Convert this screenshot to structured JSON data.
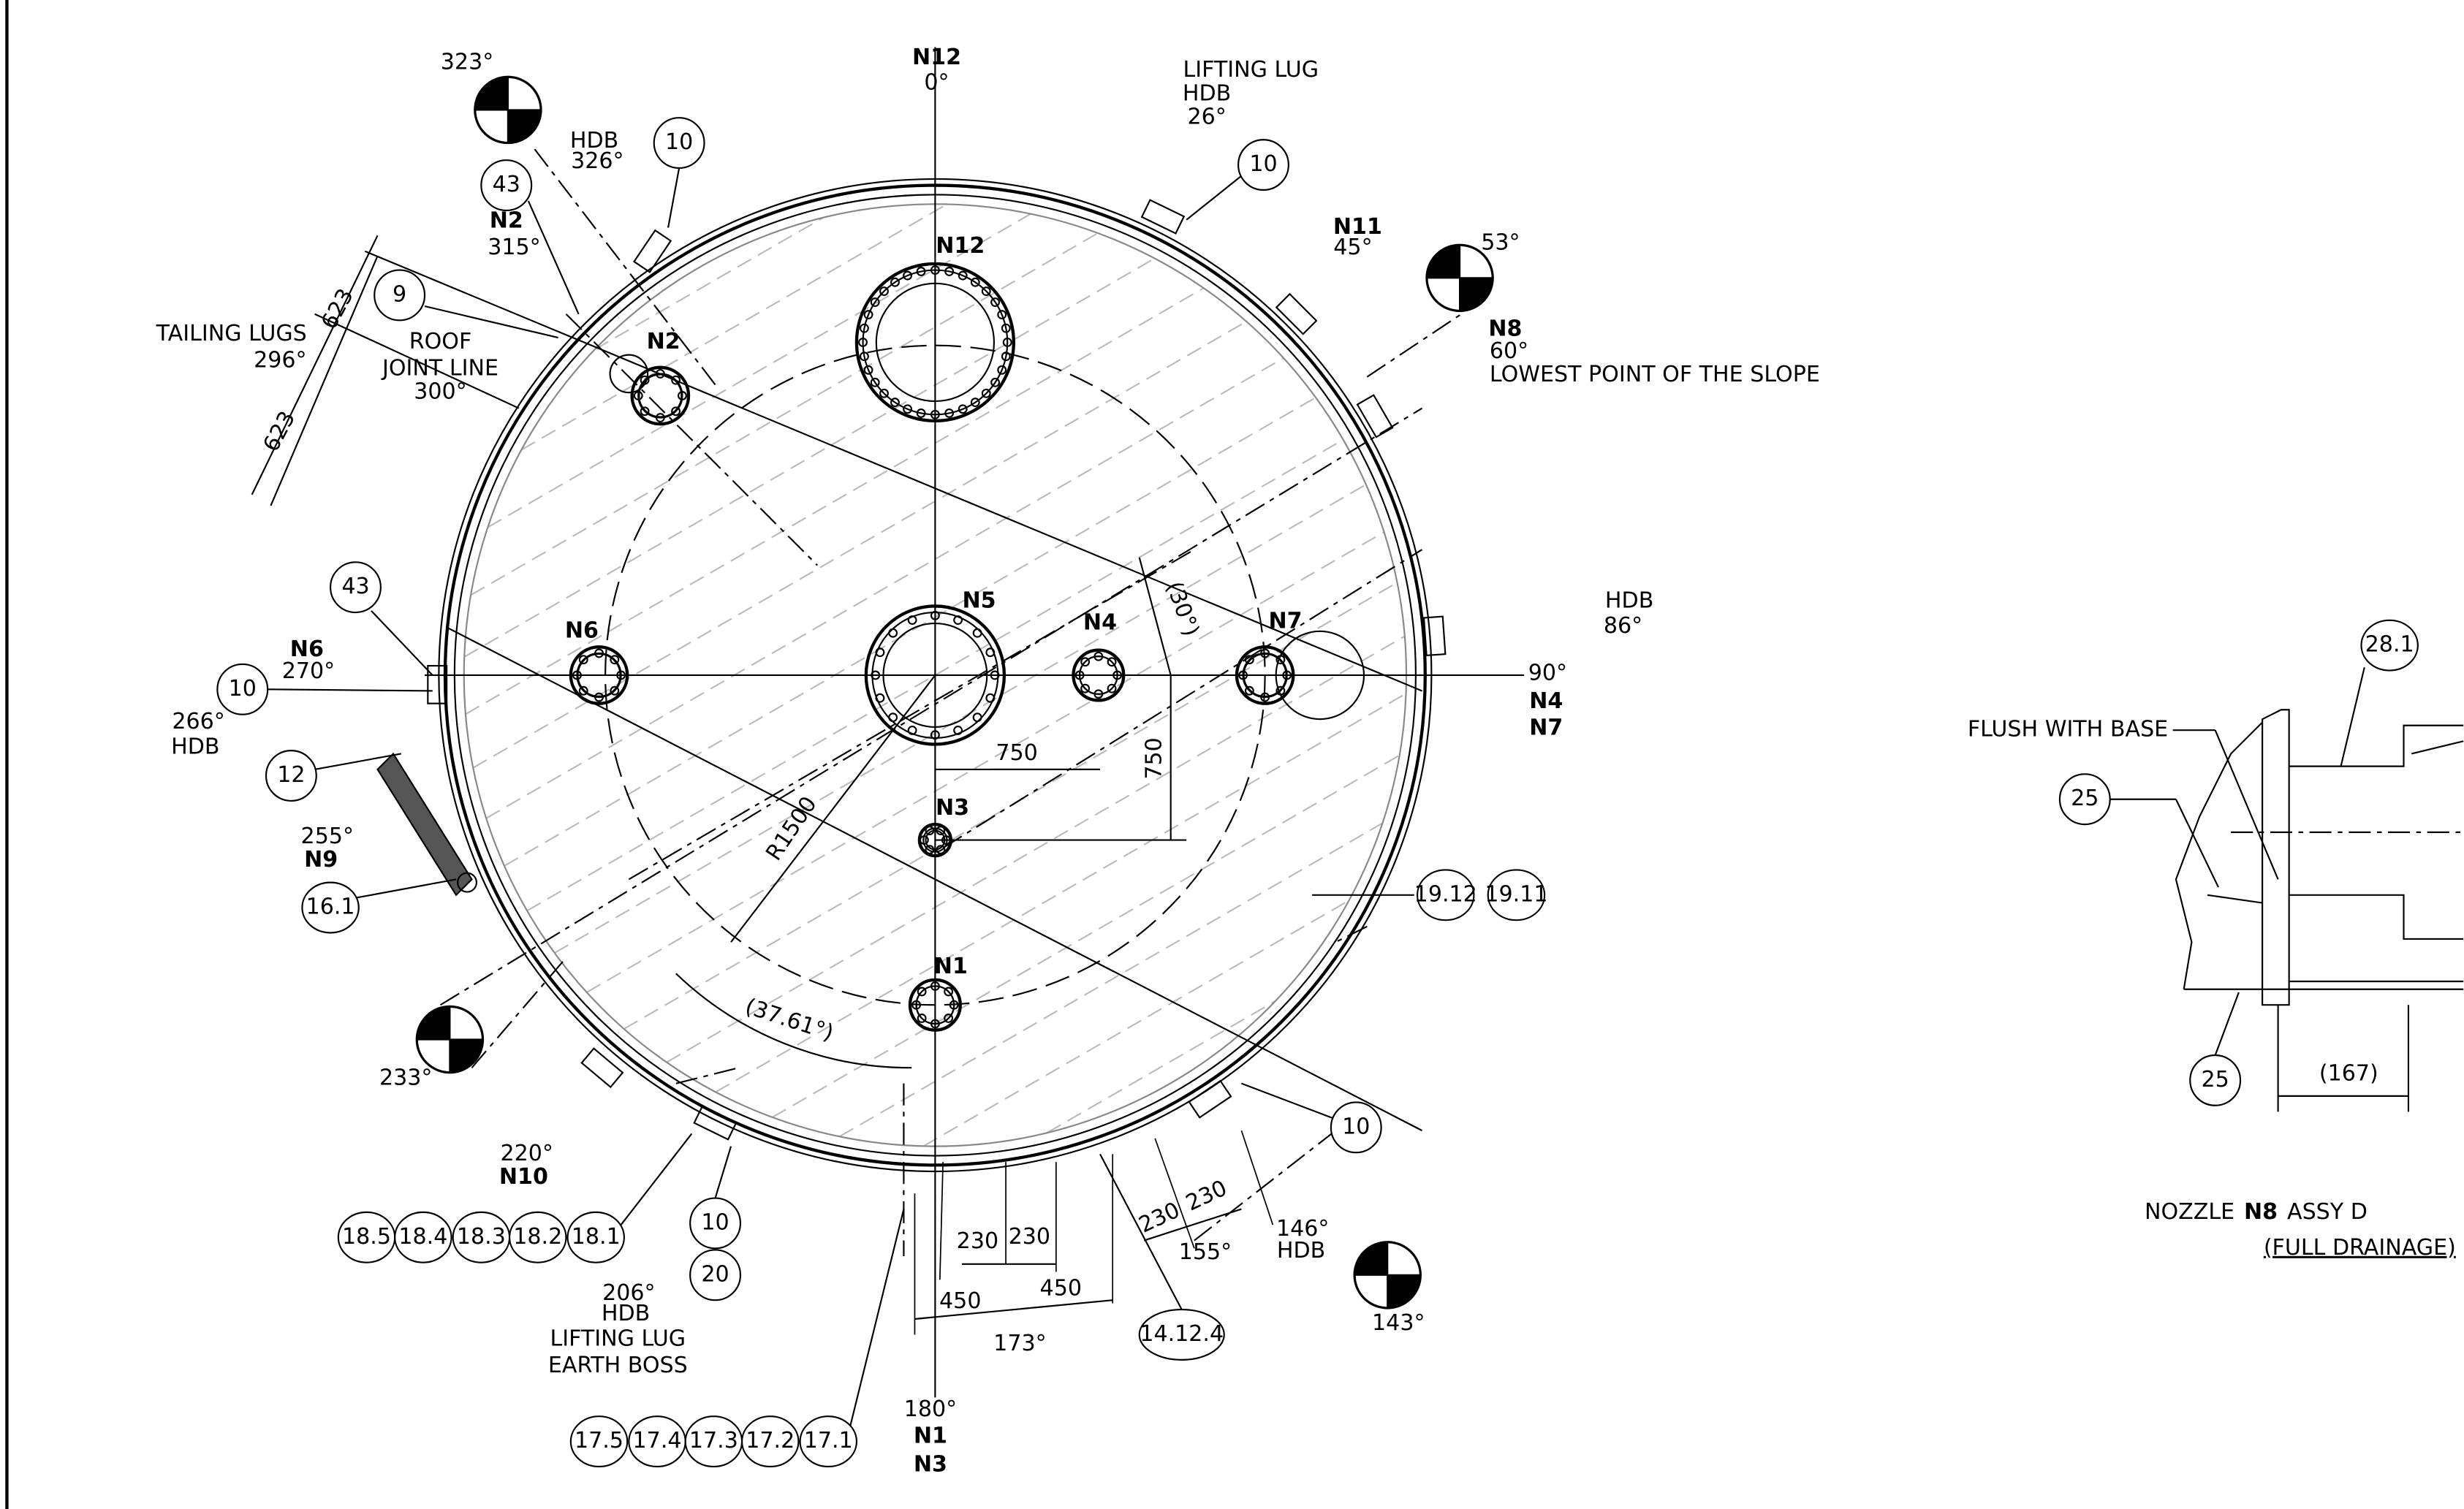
{
  "plan": {
    "labels": [
      "323°",
      "N12",
      "0°",
      "LIFTING LUG",
      "HDB",
      "26°",
      "HDB",
      "326°",
      "N2",
      "315°",
      "N12",
      "N11",
      "45°",
      "53°",
      "N8",
      "60°",
      "LOWEST POINT OF THE SLOPE",
      "623",
      "623",
      "TAILING LUGS",
      "296°",
      "ROOF",
      "JOINT LINE",
      "300°",
      "N2",
      "N5",
      "N4",
      "N7",
      "N6",
      "(30°)",
      "HDB",
      "86°",
      "N6",
      "270°",
      "90°",
      "N4",
      "N7",
      "266°",
      "HDB",
      "750",
      "750",
      "N3",
      "R1500",
      "255°",
      "N9",
      "N1",
      "(37.61°)",
      "233°",
      "220°",
      "N10",
      "146°",
      "HDB",
      "155°",
      "230",
      "230",
      "230",
      "230",
      "450",
      "450",
      "173°",
      "206°",
      "HDB",
      "LIFTING LUG",
      "EARTH BOSS",
      "143°",
      "180°",
      "N1",
      "N3"
    ],
    "balloons": [
      "10",
      "10",
      "43",
      "9",
      "43",
      "10",
      "12",
      "19.12",
      "19.11",
      "16.1",
      "10",
      "18.5",
      "18.4",
      "18.3",
      "18.2",
      "18.1",
      "10",
      "20",
      "14.12.4",
      "17.5",
      "17.4",
      "17.3",
      "17.2",
      "17.1"
    ]
  },
  "detail": {
    "title_prefix": "NOZZLE",
    "title_bold": "N8",
    "title_suffix": "ASSY D",
    "subtitle": "(FULL DRAINAGE)",
    "labels": [
      "FLUSH WITH BASE",
      "(167)"
    ],
    "balloons": [
      "28.1",
      "25",
      "25"
    ]
  }
}
